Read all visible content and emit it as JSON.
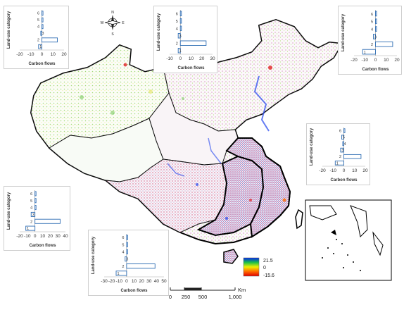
{
  "legend": {
    "max_label": "21.5",
    "mid_label": "0",
    "min_label": "-15.6",
    "gradient_colors": [
      "#0022ee",
      "#19c04a",
      "#f0f000",
      "#ff6a00",
      "#e00000"
    ]
  },
  "scale_bar": {
    "ticks": [
      "0",
      "250",
      "500",
      "1,000"
    ],
    "unit": "Km"
  },
  "compass": {
    "n": "N",
    "s": "S",
    "e": "E",
    "w": "W"
  },
  "colors": {
    "bar_stroke": "#2e6db4",
    "border": "#000000",
    "internal_border": "#1f1f1f"
  },
  "chart_data": [
    {
      "type": "bar",
      "orientation": "horizontal",
      "position": "top-left",
      "categories": [
        "1",
        "2",
        "3",
        "4",
        "5",
        "6"
      ],
      "values": [
        -3,
        14,
        -1,
        1,
        1,
        1
      ],
      "xticks": [
        "-20",
        "-10",
        "0",
        "10",
        "20"
      ],
      "xlim": [
        -20,
        20
      ],
      "xlabel": "Carbon flows",
      "ylabel": "Land-use category"
    },
    {
      "type": "bar",
      "orientation": "horizontal",
      "position": "top-center",
      "categories": [
        "1",
        "2",
        "3",
        "4",
        "5",
        "6"
      ],
      "values": [
        -2,
        24,
        -2,
        1,
        1,
        1
      ],
      "xticks": [
        "-10",
        "0",
        "10",
        "20",
        "30"
      ],
      "xlim": [
        -10,
        30
      ],
      "xlabel": "Carbon flows",
      "ylabel": "Land-use category"
    },
    {
      "type": "bar",
      "orientation": "horizontal",
      "position": "top-right",
      "categories": [
        "1",
        "2",
        "3",
        "4",
        "5",
        "6"
      ],
      "values": [
        -12,
        16,
        -2,
        1,
        1,
        1
      ],
      "xticks": [
        "-20",
        "-10",
        "0",
        "10",
        "20"
      ],
      "xlim": [
        -20,
        20
      ],
      "xlabel": "Carbon flows",
      "ylabel": "Land-use category"
    },
    {
      "type": "bar",
      "orientation": "horizontal",
      "position": "middle-right",
      "categories": [
        "1",
        "2",
        "3",
        "4",
        "5",
        "6"
      ],
      "values": [
        -8,
        16,
        -3,
        -1,
        -2,
        1
      ],
      "xticks": [
        "-20",
        "-10",
        "0",
        "10",
        "20"
      ],
      "xlim": [
        -20,
        20
      ],
      "xlabel": "Carbon flows",
      "ylabel": "Land-use category"
    },
    {
      "type": "bar",
      "orientation": "horizontal",
      "position": "bottom-left",
      "categories": [
        "1",
        "2",
        "3",
        "4",
        "5",
        "6"
      ],
      "values": [
        -12,
        33,
        -5,
        1,
        1,
        1
      ],
      "xticks": [
        "-20",
        "-10",
        "0",
        "10",
        "20",
        "30",
        "40"
      ],
      "xlim": [
        -20,
        40
      ],
      "xlabel": "Carbon flows",
      "ylabel": "Land-use category"
    },
    {
      "type": "bar",
      "orientation": "horizontal",
      "position": "bottom-center",
      "categories": [
        "1",
        "2",
        "3",
        "4",
        "5",
        "6"
      ],
      "values": [
        -14,
        38,
        -2,
        1,
        1,
        1
      ],
      "xticks": [
        "-30",
        "-20",
        "-10",
        "0",
        "10",
        "20",
        "30",
        "40",
        "50"
      ],
      "xlim": [
        -30,
        50
      ],
      "xlabel": "Carbon flows",
      "ylabel": "Land-use category"
    }
  ]
}
